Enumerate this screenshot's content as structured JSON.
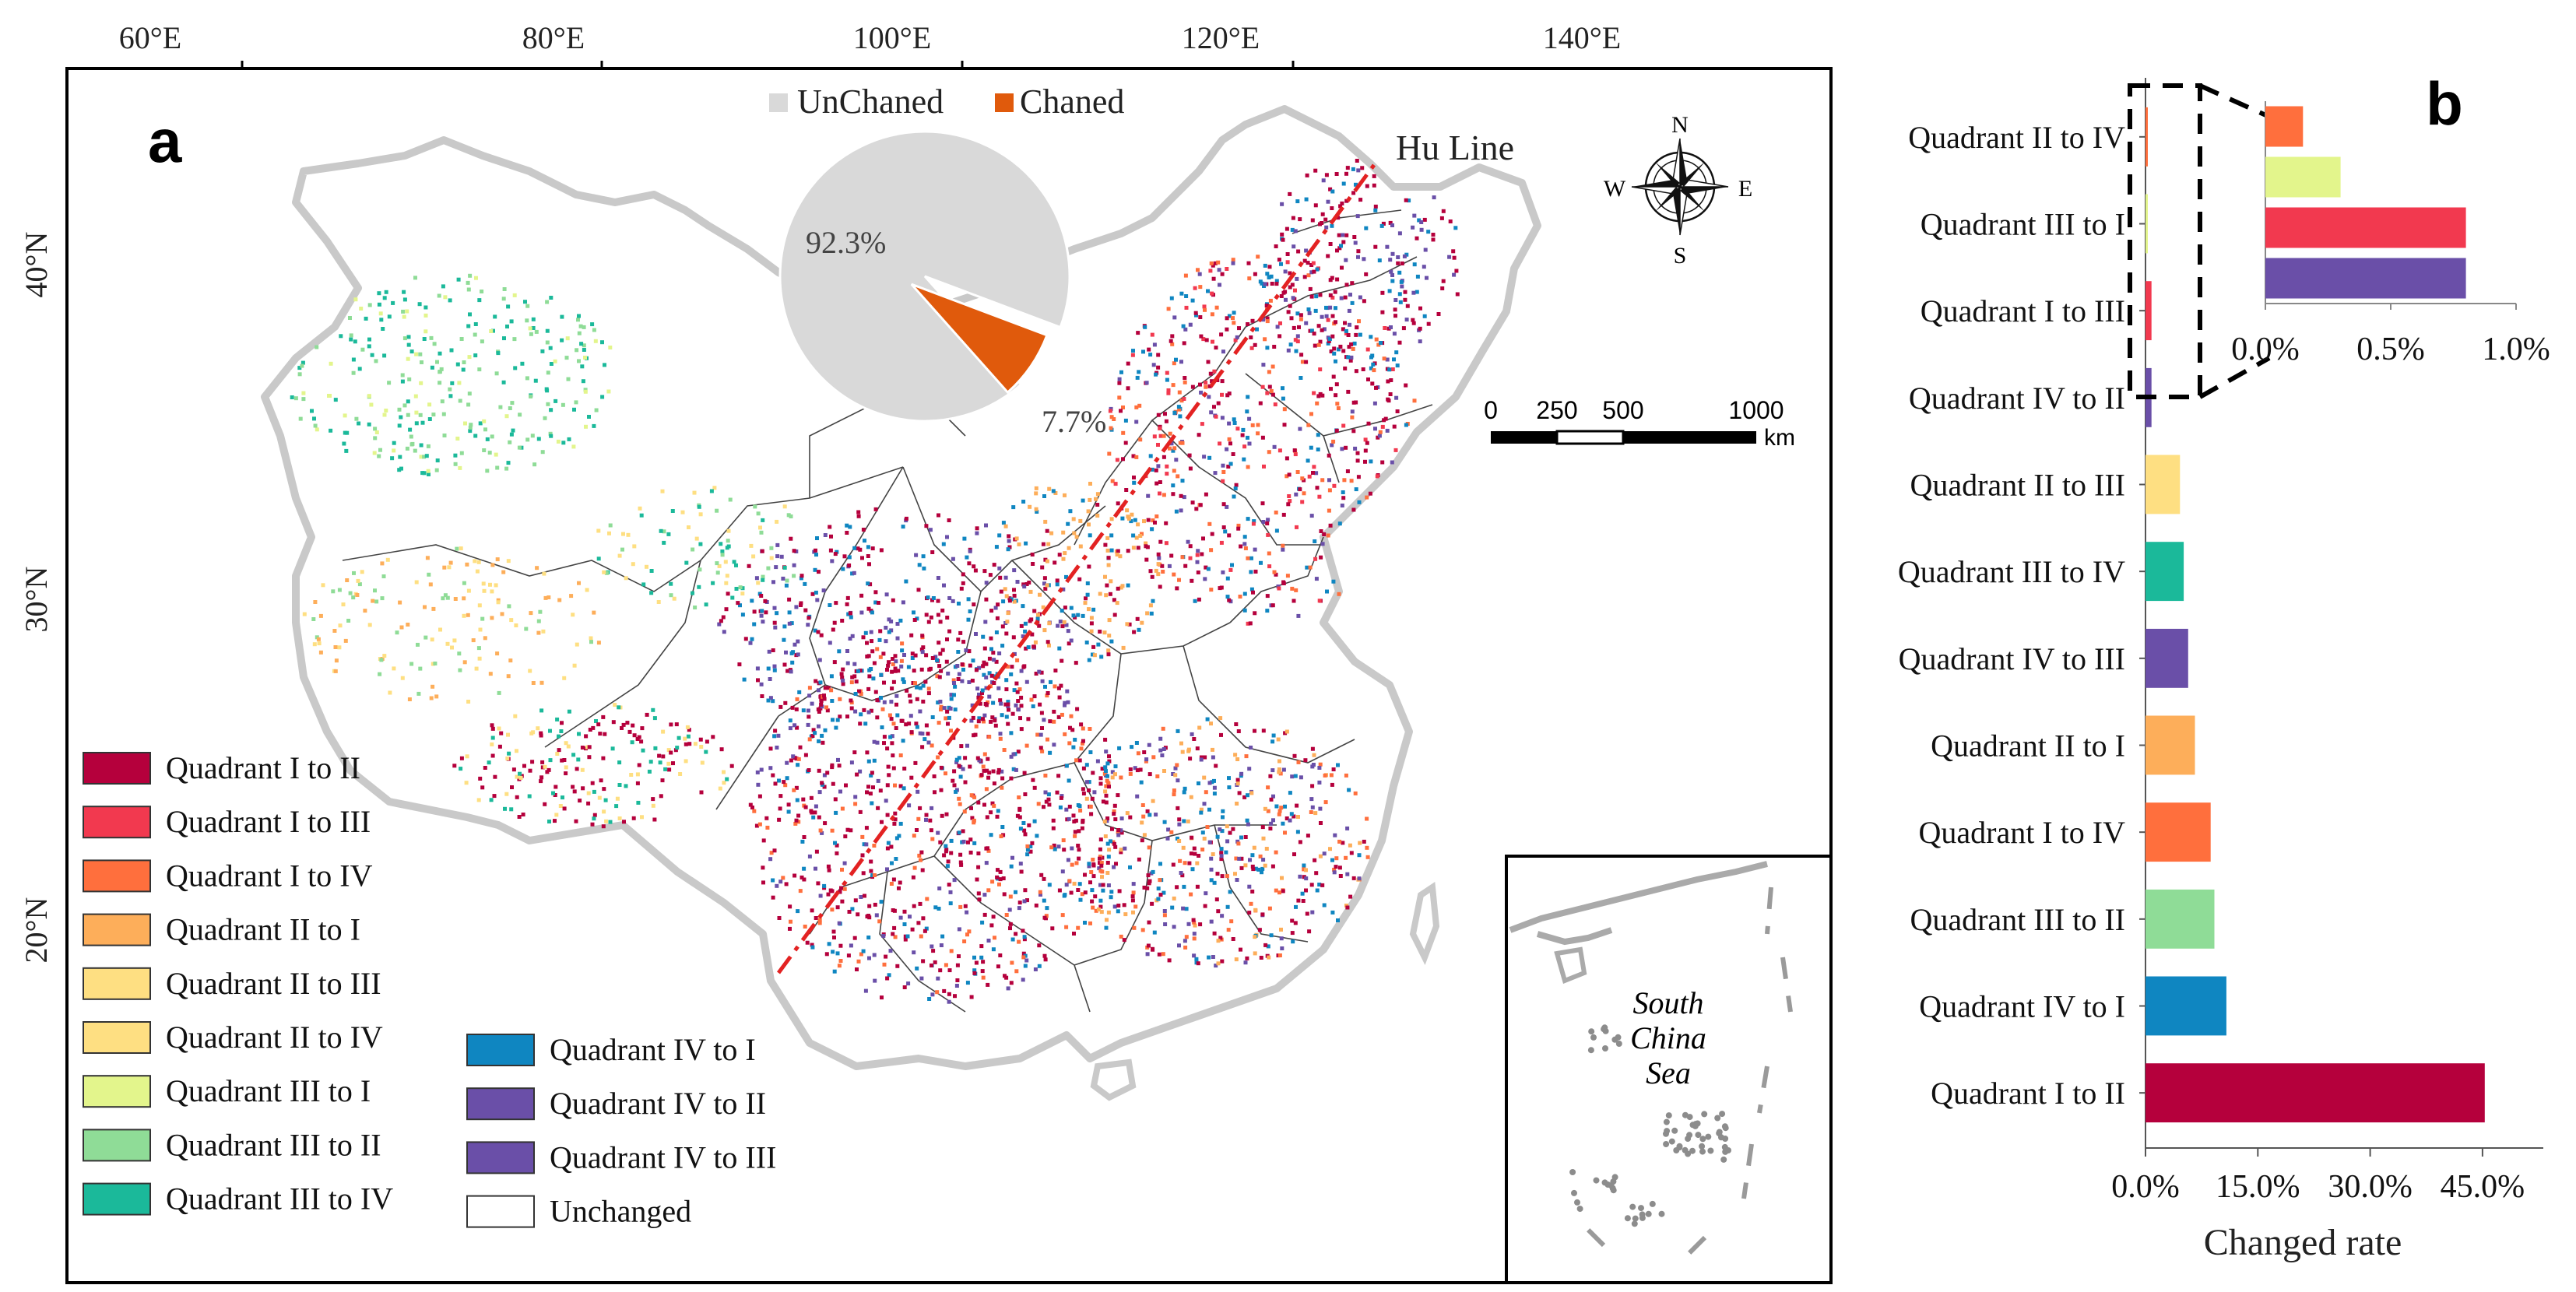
{
  "panel_a": {
    "label": "a",
    "longitude_ticks": [
      "60°E",
      "80°E",
      "100°E",
      "120°E",
      "140°E"
    ],
    "latitude_ticks": [
      "40°N",
      "30°N",
      "20°N"
    ],
    "hu_line_label": "Hu Line",
    "compass": {
      "n": "N",
      "s": "S",
      "e": "E",
      "w": "W"
    },
    "scale_bar": {
      "ticks": [
        "0",
        "250",
        "500",
        "1000"
      ],
      "unit": "km"
    },
    "inset_label": [
      "South",
      "China",
      "Sea"
    ],
    "pie": {
      "legend": [
        {
          "label": "UnChaned",
          "color": "#d9d9d9"
        },
        {
          "label": "Chaned",
          "color": "#e05a0c"
        }
      ],
      "slices": [
        {
          "label": "92.3%",
          "value": 92.3,
          "color": "#d9d9d9"
        },
        {
          "label": "7.7%",
          "value": 7.7,
          "color": "#e05a0c"
        }
      ]
    },
    "legend_left": [
      {
        "label": "Quadrant I to II",
        "color": "#b5003c"
      },
      {
        "label": "Quadrant I to III",
        "color": "#f2394f"
      },
      {
        "label": "Quadrant I to IV",
        "color": "#ff6f3d"
      },
      {
        "label": "Quadrant II to I",
        "color": "#fdae5a"
      },
      {
        "label": "Quadrant II to III",
        "color": "#fedf82"
      },
      {
        "label": "Quadrant II to IV",
        "color": "#fedf82"
      },
      {
        "label": "Quadrant III to I",
        "color": "#e3f58c"
      },
      {
        "label": "Quadrant III to II",
        "color": "#8fdc97"
      },
      {
        "label": "Quadrant III to IV",
        "color": "#1bb99a"
      }
    ],
    "legend_right": [
      {
        "label": "Quadrant IV to I",
        "color": "#0f86c1"
      },
      {
        "label": "Quadrant IV to II",
        "color": "#6a4fa8"
      },
      {
        "label": "Quadrant IV to III",
        "color": "#6a4fa8"
      },
      {
        "label": "Unchanged",
        "color": "#ffffff"
      }
    ]
  },
  "chart_data": {
    "type": "bar",
    "orientation": "horizontal",
    "panel_label": "b",
    "xlabel": "Changed rate",
    "xlim": [
      0,
      50
    ],
    "xticks": [
      "0.0%",
      "15.0%",
      "30.0%",
      "45.0%"
    ],
    "categories": [
      "Quadrant II to IV",
      "Quadrant III to I",
      "Quadrant I to III",
      "Quadrant IV to II",
      "Quadrant II to III",
      "Quadrant III to IV",
      "Quadrant IV to III",
      "Quadrant II to I",
      "Quadrant I to IV",
      "Quadrant III to II",
      "Quadrant IV to I",
      "Quadrant I to II"
    ],
    "values": [
      0.15,
      0.3,
      0.8,
      0.8,
      4.6,
      5.1,
      5.7,
      6.6,
      8.7,
      9.2,
      10.8,
      45.3
    ],
    "colors": [
      "#ff6f3d",
      "#e3f58c",
      "#f2394f",
      "#6a4fa8",
      "#fedf82",
      "#1bb99a",
      "#6a4fa8",
      "#fdae5a",
      "#ff6f3d",
      "#8fdc97",
      "#0f86c1",
      "#b5003c"
    ],
    "inset": {
      "xlim": [
        0,
        1.0
      ],
      "xticks": [
        "0.0%",
        "0.5%",
        "1.0%"
      ],
      "categories": [
        "Quadrant II to IV",
        "Quadrant III to I",
        "Quadrant I to III",
        "Quadrant IV to II"
      ],
      "values": [
        0.15,
        0.3,
        0.8,
        0.8
      ]
    }
  }
}
